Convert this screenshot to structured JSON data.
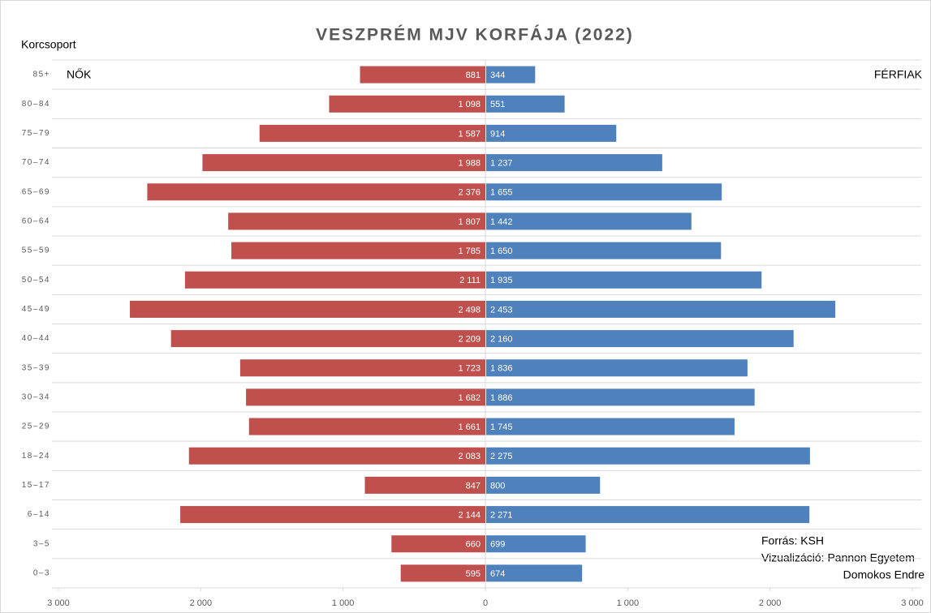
{
  "chart_data": {
    "type": "pyramid",
    "title": "VESZPRÉM MJV KORFÁJA (2022)",
    "y_axis_label": "Korcsoport",
    "categories": [
      "85+",
      "80–84",
      "75–79",
      "70–74",
      "65–69",
      "60–64",
      "55–59",
      "50–54",
      "45–49",
      "40–44",
      "35–39",
      "30–34",
      "25–29",
      "18–24",
      "15–17",
      "6–14",
      "3–5",
      "0–3"
    ],
    "series": [
      {
        "name": "NŐK",
        "color": "#c0504d",
        "values": [
          881,
          1098,
          1587,
          1988,
          2376,
          1807,
          1785,
          2111,
          2498,
          2209,
          1723,
          1682,
          1661,
          2083,
          847,
          2144,
          660,
          595
        ],
        "value_labels": [
          "881",
          "1 098",
          "1 587",
          "1 988",
          "2 376",
          "1 807",
          "1 785",
          "2 111",
          "2 498",
          "2 209",
          "1 723",
          "1 682",
          "1 661",
          "2 083",
          "847",
          "2 144",
          "660",
          "595"
        ]
      },
      {
        "name": "FÉRFIAK",
        "color": "#4f81bd",
        "values": [
          344,
          551,
          914,
          1237,
          1655,
          1442,
          1650,
          1935,
          2453,
          2160,
          1836,
          1886,
          1745,
          2275,
          800,
          2271,
          699,
          674
        ],
        "value_labels": [
          "344",
          "551",
          "914",
          "1 237",
          "1 655",
          "1 442",
          "1 650",
          "1 935",
          "2 453",
          "2 160",
          "1 836",
          "1 886",
          "1 745",
          "2 275",
          "800",
          "2 271",
          "699",
          "674"
        ]
      }
    ],
    "xlim": [
      0,
      3000
    ],
    "xticks": [
      0,
      {
        "value": 1000,
        "label": "1 000"
      },
      {
        "value": 2000,
        "label": "2 000"
      },
      {
        "value": 3000,
        "label": "3 000"
      }
    ],
    "grid": true,
    "notes": [
      "Forrás: KSH",
      "Vizualizáció: Pannon Egyetem",
      "Domokos Endre"
    ]
  }
}
